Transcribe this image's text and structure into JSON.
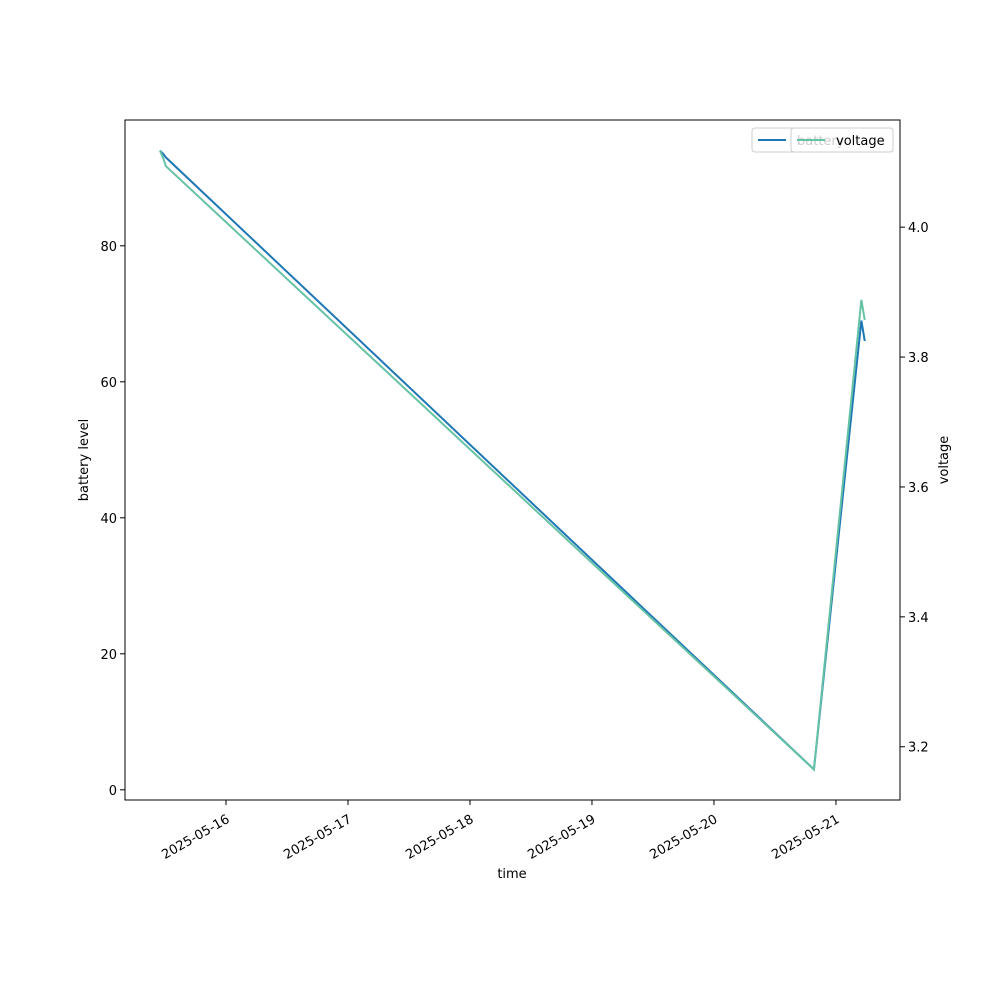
{
  "chart_data": {
    "type": "line",
    "x": [
      "2025-05-15T11:00",
      "2025-05-15T11:40",
      "2025-05-15T12:10",
      "2025-05-20T19:40",
      "2025-05-21T05:00",
      "2025-05-21T05:40"
    ],
    "series": [
      {
        "name": "battery",
        "color": "#1f77b4",
        "values": [
          94,
          93.5,
          93,
          3,
          69,
          66
        ]
      },
      {
        "name": "voltage",
        "color": "#66c2a5",
        "axis": "y2",
        "values": [
          4.118,
          4.106,
          4.094,
          3.165,
          3.888,
          3.857
        ]
      }
    ],
    "xlabel": "time",
    "ylabel": "battery level",
    "y2label": "voltage",
    "xlim": [
      "2025-05-15T04:08",
      "2025-05-21T12:36"
    ],
    "xticks": [
      "2025-05-16",
      "2025-05-17",
      "2025-05-18",
      "2025-05-19",
      "2025-05-20",
      "2025-05-21"
    ],
    "ylim": [
      -1.5,
      98.5
    ],
    "yticks": [
      0,
      20,
      40,
      60,
      80
    ],
    "y2lim": [
      3.118,
      4.165
    ],
    "y2ticks": [
      3.2,
      3.4,
      3.6,
      3.8,
      {
        "value": 4,
        "label": "4.0"
      }
    ],
    "legend": "upper right"
  }
}
